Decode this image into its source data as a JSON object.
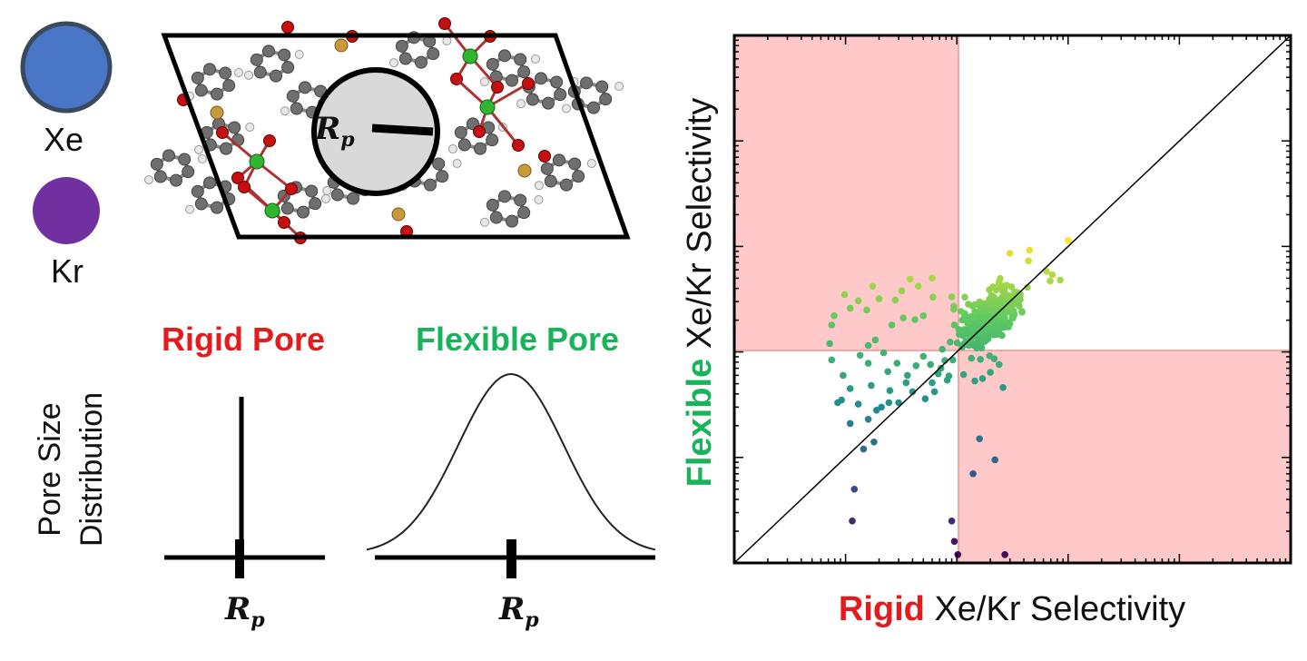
{
  "colors": {
    "xe": "#4a76c8",
    "kr": "#7030a0",
    "rigid_red": "#e41a1c",
    "flexible_green": "#18b35a",
    "shade": "#ffc9c9",
    "c_atom": "#6f6f6f",
    "o_atom": "#c41010",
    "h_atom": "#e8e8e8",
    "p_atom": "#c89a3c",
    "metal_atom": "#2fb52f",
    "pore_fill": "#d9d9d9"
  },
  "legend": {
    "xe_label": "Xe",
    "kr_label": "Kr"
  },
  "structure": {
    "pore_label_main": "R",
    "pore_label_sub": "p"
  },
  "distributions": {
    "ylabel_line1": "Pore Size",
    "ylabel_line2": "Distribution",
    "rigid_title": "Rigid Pore",
    "flexible_title": "Flexible Pore",
    "rigid_xlabel_main": "R",
    "rigid_xlabel_sub": "p",
    "flexible_xlabel_main": "R",
    "flexible_xlabel_sub": "p"
  },
  "chart_data": {
    "type": "scatter",
    "x_scale": "log",
    "y_scale": "log",
    "xlim": [
      0.1,
      10000
    ],
    "ylim": [
      0.1,
      10000
    ],
    "xlabel_colored": "Rigid",
    "xlabel_rest": "Xe/Kr Selectivity",
    "ylabel_colored": "Flexible",
    "ylabel_rest": "Xe/Kr Selectivity",
    "threshold_x": 10,
    "threshold_y": 10,
    "diagonal": true,
    "shaded_regions": [
      "upper-left",
      "lower-right"
    ],
    "colormap": "viridis",
    "points": [
      [
        1.2,
        0.5
      ],
      [
        1.15,
        0.25
      ],
      [
        1.45,
        1.2
      ],
      [
        1.1,
        2.1
      ],
      [
        1.6,
        2.3
      ],
      [
        1.8,
        1.4
      ],
      [
        1.9,
        2.8
      ],
      [
        0.75,
        8.4
      ],
      [
        0.92,
        3.5
      ],
      [
        2.45,
        3.3
      ],
      [
        9.0,
        0.25
      ],
      [
        9.5,
        0.16
      ],
      [
        10.2,
        0.12
      ],
      [
        27,
        0.12
      ],
      [
        22,
        0.95
      ],
      [
        14,
        0.7
      ],
      [
        16,
        1.5
      ],
      [
        27,
        22.9
      ],
      [
        13,
        17
      ],
      [
        9.5,
        18
      ],
      [
        4.2,
        20.2
      ],
      [
        6.1,
        33
      ],
      [
        6,
        5.1
      ],
      [
        7.2,
        7
      ],
      [
        8.2,
        5.4
      ],
      [
        0.72,
        12
      ],
      [
        0.79,
        22
      ],
      [
        0.75,
        18
      ],
      [
        0.98,
        35
      ],
      [
        1.1,
        26
      ],
      [
        1.3,
        30.5
      ],
      [
        1.55,
        25
      ],
      [
        2,
        32
      ],
      [
        1.75,
        42
      ],
      [
        2.8,
        31
      ],
      [
        3.2,
        38
      ],
      [
        3.8,
        49
      ],
      [
        4.5,
        42
      ],
      [
        6,
        50
      ],
      [
        5,
        22
      ],
      [
        3.3,
        21
      ],
      [
        2.6,
        18
      ],
      [
        1.85,
        13
      ],
      [
        1.6,
        11.5
      ],
      [
        2.2,
        9.8
      ],
      [
        1.6,
        7.8
      ],
      [
        1.35,
        9.3
      ],
      [
        2.4,
        6.5
      ],
      [
        2.9,
        7.8
      ],
      [
        3.6,
        6
      ],
      [
        4.3,
        7.4
      ],
      [
        5,
        9.1
      ],
      [
        5.8,
        7.6
      ],
      [
        7.4,
        10.6
      ],
      [
        8.7,
        12.4
      ],
      [
        0.85,
        3.3
      ],
      [
        0.95,
        6
      ],
      [
        1.1,
        4.5
      ],
      [
        1.3,
        3.2
      ],
      [
        1.7,
        4.8
      ],
      [
        2.1,
        3
      ],
      [
        2.5,
        4.3
      ],
      [
        3,
        3.3
      ],
      [
        3.5,
        5.1
      ],
      [
        4,
        4.2
      ],
      [
        5.2,
        3.6
      ],
      [
        6.3,
        4.2
      ],
      [
        6.8,
        6.2
      ],
      [
        7.8,
        8.3
      ],
      [
        8.5,
        5.9
      ],
      [
        9.2,
        8.4
      ],
      [
        11.5,
        6.1
      ],
      [
        14.5,
        5.3
      ],
      [
        17,
        5.6
      ],
      [
        20,
        6.4
      ],
      [
        26,
        4.6
      ],
      [
        24,
        7.6
      ],
      [
        30,
        86
      ],
      [
        45,
        92
      ],
      [
        64,
        58
      ],
      [
        69,
        47
      ],
      [
        72,
        54
      ],
      [
        85,
        48
      ],
      [
        100,
        114
      ],
      [
        44,
        73
      ],
      [
        29,
        27
      ],
      [
        21,
        18
      ],
      [
        33,
        37
      ],
      [
        16,
        22
      ],
      [
        36,
        30
      ],
      [
        32,
        21
      ],
      [
        26.5,
        24.5
      ],
      [
        37,
        34
      ],
      [
        43,
        41
      ],
      [
        32.3,
        24.5
      ],
      [
        20.8,
        22.5
      ],
      [
        28,
        42.7
      ],
      [
        38.5,
        23.8
      ],
      [
        30.5,
        31.3
      ],
      [
        16.7,
        10.9
      ],
      [
        9,
        33.3
      ],
      [
        12.8,
        11.5
      ],
      [
        14.5,
        28
      ],
      [
        15.5,
        12.8
      ],
      [
        16.4,
        18.7
      ],
      [
        26.8,
        42.1
      ],
      [
        11.6,
        16.3
      ],
      [
        17.3,
        14.2
      ],
      [
        30.9,
        41.4
      ],
      [
        25.5,
        32.9
      ],
      [
        13.8,
        27.3
      ],
      [
        24.5,
        49.7
      ],
      [
        16.2,
        26.8
      ],
      [
        20.3,
        15.5
      ],
      [
        13.8,
        20.8
      ],
      [
        25.9,
        22.1
      ],
      [
        17,
        28.8
      ],
      [
        15.1,
        10.9
      ],
      [
        21.5,
        30.1
      ],
      [
        16.3,
        8.5
      ],
      [
        23.2,
        18.2
      ],
      [
        28.1,
        17.3
      ],
      [
        32.9,
        22.6
      ],
      [
        13.6,
        14.3
      ],
      [
        22.6,
        38.7
      ],
      [
        38.5,
        24.2
      ],
      [
        20.2,
        24.8
      ],
      [
        24.1,
        46.1
      ],
      [
        19.1,
        29.4
      ],
      [
        19.5,
        15.3
      ],
      [
        17.9,
        12.6
      ],
      [
        20.5,
        30
      ],
      [
        18.5,
        14.8
      ],
      [
        26.7,
        38.6
      ],
      [
        23.1,
        28.2
      ],
      [
        27.5,
        18.5
      ],
      [
        12.7,
        28.3
      ],
      [
        11.7,
        21.8
      ],
      [
        13.5,
        8.7
      ],
      [
        21.7,
        18.5
      ],
      [
        16.3,
        18.4
      ],
      [
        23.9,
        15.7
      ],
      [
        32.3,
        34.2
      ],
      [
        18.9,
        14
      ],
      [
        25.5,
        14.3
      ],
      [
        19.3,
        24.9
      ],
      [
        9.4,
        27.1
      ],
      [
        24.3,
        26.3
      ],
      [
        19.7,
        9.2
      ],
      [
        25.4,
        40
      ],
      [
        23.9,
        26.9
      ],
      [
        16,
        29.8
      ],
      [
        30.8,
        23.4
      ],
      [
        16,
        20.1
      ],
      [
        20.6,
        20.1
      ],
      [
        15.7,
        20
      ],
      [
        14.9,
        20.7
      ],
      [
        15.3,
        18.4
      ],
      [
        20.5,
        34.3
      ],
      [
        11.8,
        33
      ],
      [
        15.6,
        23.1
      ],
      [
        12.7,
        11.7
      ],
      [
        17.3,
        15.2
      ],
      [
        12.8,
        16.2
      ],
      [
        21.8,
        22.8
      ],
      [
        29.1,
        17.3
      ],
      [
        17.2,
        20.3
      ],
      [
        11.8,
        23.1
      ],
      [
        13,
        14.8
      ],
      [
        35,
        36.6
      ],
      [
        20,
        15.9
      ],
      [
        15.4,
        13.7
      ],
      [
        16.9,
        24.2
      ],
      [
        11.6,
        11.9
      ],
      [
        20.4,
        21.8
      ],
      [
        21.9,
        17.3
      ],
      [
        20.6,
        17
      ],
      [
        24.4,
        24.7
      ],
      [
        29.3,
        18.8
      ],
      [
        10.9,
        24.2
      ],
      [
        21.1,
        41.2
      ],
      [
        22.5,
        20.5
      ],
      [
        19.1,
        13.3
      ],
      [
        36.3,
        27.2
      ],
      [
        15.7,
        14.8
      ],
      [
        30.9,
        26.9
      ],
      [
        11.4,
        14.2
      ],
      [
        9.4,
        25.4
      ],
      [
        18.8,
        26.4
      ],
      [
        21.7,
        8.6
      ],
      [
        16.8,
        14.7
      ],
      [
        17.6,
        20
      ],
      [
        12.4,
        21.5
      ],
      [
        23.9,
        44.4
      ],
      [
        27.1,
        19
      ],
      [
        20.4,
        15.3
      ],
      [
        22.3,
        21.3
      ],
      [
        24.2,
        16.4
      ],
      [
        20.2,
        19.6
      ],
      [
        34.7,
        32.6
      ],
      [
        17.5,
        21.4
      ],
      [
        22.6,
        18.8
      ],
      [
        18,
        28.7
      ],
      [
        16.3,
        13.9
      ],
      [
        18.6,
        15.5
      ],
      [
        22.6,
        26.8
      ],
      [
        24.6,
        29
      ],
      [
        13.9,
        20
      ],
      [
        24.2,
        18.7
      ],
      [
        29.1,
        24.3
      ],
      [
        10.1,
        12.2
      ],
      [
        23.7,
        14.8
      ],
      [
        14.5,
        18.7
      ],
      [
        18.5,
        22.3
      ],
      [
        13,
        14.4
      ],
      [
        37.2,
        35.4
      ],
      [
        21.4,
        19.2
      ],
      [
        13.7,
        12.1
      ],
      [
        23.4,
        26.3
      ],
      [
        19.1,
        14.1
      ],
      [
        20.8,
        15.3
      ],
      [
        21.6,
        33
      ],
      [
        12.8,
        12.5
      ],
      [
        24.3,
        31.2
      ],
      [
        19.1,
        28.5
      ],
      [
        15.9,
        13.2
      ],
      [
        15.6,
        15.2
      ],
      [
        30.8,
        24.3
      ],
      [
        31.1,
        33.5
      ],
      [
        18.2,
        19.5
      ],
      [
        35.9,
        31.6
      ],
      [
        21.9,
        16.8
      ],
      [
        12.5,
        20.3
      ],
      [
        20.3,
        31.4
      ],
      [
        19.6,
        38.8
      ],
      [
        32.6,
        32.1
      ],
      [
        17.3,
        19.7
      ],
      [
        15.5,
        16.7
      ],
      [
        28,
        33
      ],
      [
        16.4,
        16.4
      ],
      [
        23.7,
        15.9
      ],
      [
        23.5,
        25.8
      ],
      [
        23.8,
        24.1
      ],
      [
        26.3,
        21.8
      ],
      [
        15.8,
        23.5
      ],
      [
        17.8,
        19.1
      ],
      [
        13.6,
        16.3
      ],
      [
        18.5,
        19
      ],
      [
        29.9,
        18.4
      ],
      [
        27.9,
        26
      ],
      [
        21.6,
        23.3
      ],
      [
        28.5,
        30.4
      ],
      [
        36.8,
        32.6
      ],
      [
        27.2,
        26.8
      ],
      [
        26.6,
        31.7
      ],
      [
        19.8,
        21.8
      ],
      [
        21.4,
        32
      ],
      [
        21.1,
        18.2
      ],
      [
        15.3,
        21.6
      ],
      [
        16.1,
        17.5
      ],
      [
        22.3,
        25.8
      ],
      [
        20.1,
        27.4
      ],
      [
        15.7,
        19.2
      ],
      [
        13.5,
        21.6
      ],
      [
        29.8,
        25.6
      ],
      [
        14.9,
        21.9
      ],
      [
        16.6,
        19.1
      ],
      [
        18,
        15.1
      ],
      [
        24.1,
        19.1
      ],
      [
        10.4,
        16.3
      ],
      [
        25.3,
        24.5
      ],
      [
        37.1,
        31.3
      ],
      [
        25.5,
        21.4
      ],
      [
        18.9,
        15.6
      ],
      [
        17.4,
        14.1
      ],
      [
        26.4,
        31.9
      ],
      [
        27.3,
        35.3
      ],
      [
        25.9,
        36.9
      ],
      [
        24.2,
        29.2
      ],
      [
        28.1,
        30.2
      ],
      [
        19,
        20.9
      ],
      [
        26.1,
        24.8
      ],
      [
        28.4,
        33.7
      ],
      [
        18.5,
        26.5
      ],
      [
        18.8,
        18
      ],
      [
        17.4,
        18.8
      ],
      [
        18,
        27
      ],
      [
        21.5,
        19.4
      ],
      [
        22.8,
        28.8
      ],
      [
        14.9,
        17.7
      ],
      [
        21.9,
        27
      ],
      [
        23.2,
        23.7
      ],
      [
        11.2,
        20
      ],
      [
        20,
        17.9
      ],
      [
        18.8,
        23.5
      ],
      [
        26.3,
        17.1
      ],
      [
        15.9,
        12.3
      ],
      [
        17.6,
        21.3
      ],
      [
        23.4,
        22.4
      ],
      [
        19.5,
        17.3
      ],
      [
        16.5,
        21.5
      ],
      [
        26.3,
        26.9
      ],
      [
        19.8,
        24.5
      ],
      [
        16.4,
        26.2
      ],
      [
        23.4,
        30
      ],
      [
        12.5,
        18.6
      ],
      [
        21.5,
        22.7
      ],
      [
        27.1,
        23.7
      ],
      [
        16.6,
        11.9
      ],
      [
        16.9,
        20.6
      ],
      [
        18.6,
        15.4
      ],
      [
        14.5,
        24.1
      ],
      [
        24.6,
        27.6
      ],
      [
        18.9,
        26.6
      ],
      [
        19.2,
        18
      ],
      [
        13.8,
        11.8
      ],
      [
        21.5,
        14.5
      ],
      [
        11.2,
        11.1
      ],
      [
        19.8,
        20.6
      ],
      [
        23.7,
        20.4
      ],
      [
        19.1,
        17.2
      ],
      [
        22.3,
        22.9
      ],
      [
        13.1,
        14.6
      ],
      [
        32.7,
        28.6
      ],
      [
        19.6,
        16.8
      ],
      [
        19.8,
        22.3
      ],
      [
        26.1,
        29.7
      ],
      [
        23.8,
        18.9
      ],
      [
        24.7,
        25.8
      ],
      [
        16.5,
        13.1
      ],
      [
        12.8,
        15.8
      ],
      [
        26.9,
        20.8
      ],
      [
        21.8,
        15.7
      ],
      [
        25.9,
        21.4
      ],
      [
        12.6,
        12.1
      ],
      [
        13.1,
        13.3
      ],
      [
        28.4,
        26
      ],
      [
        13.1,
        13.1
      ],
      [
        14.1,
        11.5
      ],
      [
        19.6,
        19.2
      ],
      [
        17.6,
        17.8
      ],
      [
        19.6,
        31.5
      ],
      [
        18.7,
        20.5
      ],
      [
        22,
        27.4
      ],
      [
        24.9,
        25.1
      ],
      [
        19.8,
        24.6
      ],
      [
        17.1,
        16.6
      ],
      [
        18.3,
        24.1
      ],
      [
        30.8,
        27.4
      ],
      [
        31.4,
        21
      ],
      [
        16.8,
        14.6
      ],
      [
        29.5,
        28.3
      ],
      [
        22.7,
        14.6
      ],
      [
        17.1,
        24.2
      ],
      [
        16.6,
        19.9
      ],
      [
        23.8,
        20.2
      ],
      [
        26.2,
        28.2
      ],
      [
        19.9,
        21.5
      ],
      [
        17.3,
        18.5
      ],
      [
        10.5,
        14.7
      ],
      [
        23.6,
        25.9
      ],
      [
        24.9,
        19.7
      ],
      [
        15.2,
        16.1
      ],
      [
        20.4,
        18.4
      ],
      [
        15.8,
        13.7
      ],
      [
        23.5,
        18.2
      ],
      [
        14,
        13.9
      ],
      [
        24.9,
        25.8
      ],
      [
        19.6,
        28
      ],
      [
        21.8,
        26.5
      ],
      [
        12.1,
        12.6
      ],
      [
        28.2,
        26.9
      ],
      [
        25.3,
        26.5
      ],
      [
        12.6,
        14.8
      ],
      [
        25.8,
        23.1
      ],
      [
        16.2,
        14.9
      ],
      [
        12.5,
        20.7
      ],
      [
        17.1,
        19.2
      ],
      [
        18.8,
        18.9
      ],
      [
        15.7,
        20.7
      ],
      [
        23.7,
        18.5
      ],
      [
        23.7,
        20.4
      ],
      [
        21,
        18.6
      ],
      [
        16,
        19.5
      ],
      [
        24.4,
        28.4
      ],
      [
        16.2,
        16.7
      ],
      [
        21.8,
        28.2
      ],
      [
        21.1,
        16.2
      ],
      [
        24.2,
        22.6
      ],
      [
        15.6,
        15.1
      ],
      [
        27.1,
        24
      ],
      [
        25.7,
        29.9
      ],
      [
        13.8,
        17.2
      ],
      [
        17.2,
        19.2
      ],
      [
        14.6,
        20.6
      ],
      [
        20.5,
        24.5
      ],
      [
        29.4,
        34
      ],
      [
        18.6,
        21.6
      ],
      [
        15.2,
        17.2
      ],
      [
        13.7,
        14.8
      ]
    ]
  }
}
